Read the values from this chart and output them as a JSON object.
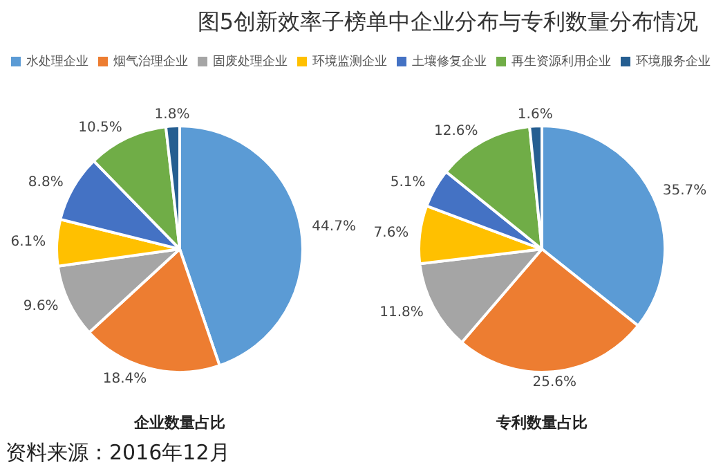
{
  "chart_data": [
    {
      "type": "pie",
      "title": "图5创新效率子榜单中企业分布与专利数量分布情况",
      "xlabel": "企业数量占比",
      "legend": "top",
      "annotations": [
        "资料来源：2016年12月"
      ],
      "categories": [
        "水处理企业",
        "烟气治理企业",
        "固废处理企业",
        "环境监测企业",
        "土壤修复企业",
        "再生资源利用企业",
        "环境服务企业"
      ],
      "values": [
        44.7,
        18.4,
        9.6,
        6.1,
        8.8,
        10.5,
        1.8
      ],
      "value_labels": [
        "44.7%",
        "18.4%",
        "9.6%",
        "6.1%",
        "8.8%",
        "10.5%",
        "1.8%"
      ],
      "colors": [
        "#5b9bd5",
        "#ed7d31",
        "#a5a5a5",
        "#ffc000",
        "#4472c4",
        "#70ad47",
        "#255e91"
      ]
    },
    {
      "type": "pie",
      "xlabel": "专利数量占比",
      "categories": [
        null,
        null,
        null,
        null,
        null,
        null,
        null
      ],
      "values": [
        35.7,
        25.6,
        11.8,
        7.6,
        5.1,
        12.6,
        1.6
      ],
      "value_labels": [
        "35.7%",
        "25.6%",
        "11.8%",
        "7.6%",
        "5.1%",
        "12.6%",
        "1.6%"
      ],
      "colors": [
        "#5b9bd5",
        "#ed7d31",
        "#a5a5a5",
        "#ffc000",
        "#4472c4",
        "#70ad47",
        "#255e91"
      ]
    }
  ]
}
